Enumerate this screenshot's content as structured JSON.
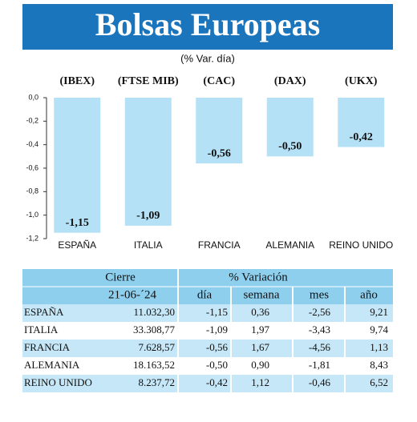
{
  "chart_data": {
    "type": "bar",
    "title": "Bolsas Europeas",
    "subtitle": "(% Var. día)",
    "index_names": [
      "(IBEX)",
      "(FTSE MIB)",
      "(CAC)",
      "(DAX)",
      "(UKX)"
    ],
    "categories": [
      "ESPAÑA",
      "ITALIA",
      "FRANCIA",
      "ALEMANIA",
      "REINO UNIDO"
    ],
    "values": [
      -1.15,
      -1.09,
      -0.56,
      -0.5,
      -0.42
    ],
    "value_labels": [
      "-1,15",
      "-1,09",
      "-0,56",
      "-0,50",
      "-0,42"
    ],
    "color": "#b5e1f6",
    "ylim": [
      -1.2,
      0
    ],
    "yticks": [
      {
        "value": 0,
        "label": "0,0"
      },
      {
        "value": -0.2,
        "label": "-0,2"
      },
      {
        "value": -0.4,
        "label": "-0,4"
      },
      {
        "value": -0.6,
        "label": "-0,6"
      },
      {
        "value": -0.8,
        "label": "-0,8"
      },
      {
        "value": -1.0,
        "label": "-1,0"
      },
      {
        "value": -1.2,
        "label": "-1,2"
      }
    ],
    "grid": false
  },
  "table": {
    "header": [
      "Cierre",
      "% Variación"
    ],
    "subheader": [
      "21-06-´24",
      "día",
      "semana",
      "mes",
      "año"
    ],
    "rows": [
      [
        "ESPAÑA",
        "11.032,30",
        "-1,15",
        "0,36",
        "-2,56",
        "9,21"
      ],
      [
        "ITALIA",
        "33.308,77",
        "-1,09",
        "1,97",
        "-3,43",
        "9,74"
      ],
      [
        "FRANCIA",
        "7.628,57",
        "-0,56",
        "1,67",
        "-4,56",
        "1,13"
      ],
      [
        "ALEMANIA",
        "18.163,52",
        "-0,50",
        "0,90",
        "-1,81",
        "8,43"
      ],
      [
        "REINO UNIDO",
        "8.237,72",
        "-0,42",
        "1,12",
        "-0,46",
        "6,52"
      ]
    ]
  }
}
